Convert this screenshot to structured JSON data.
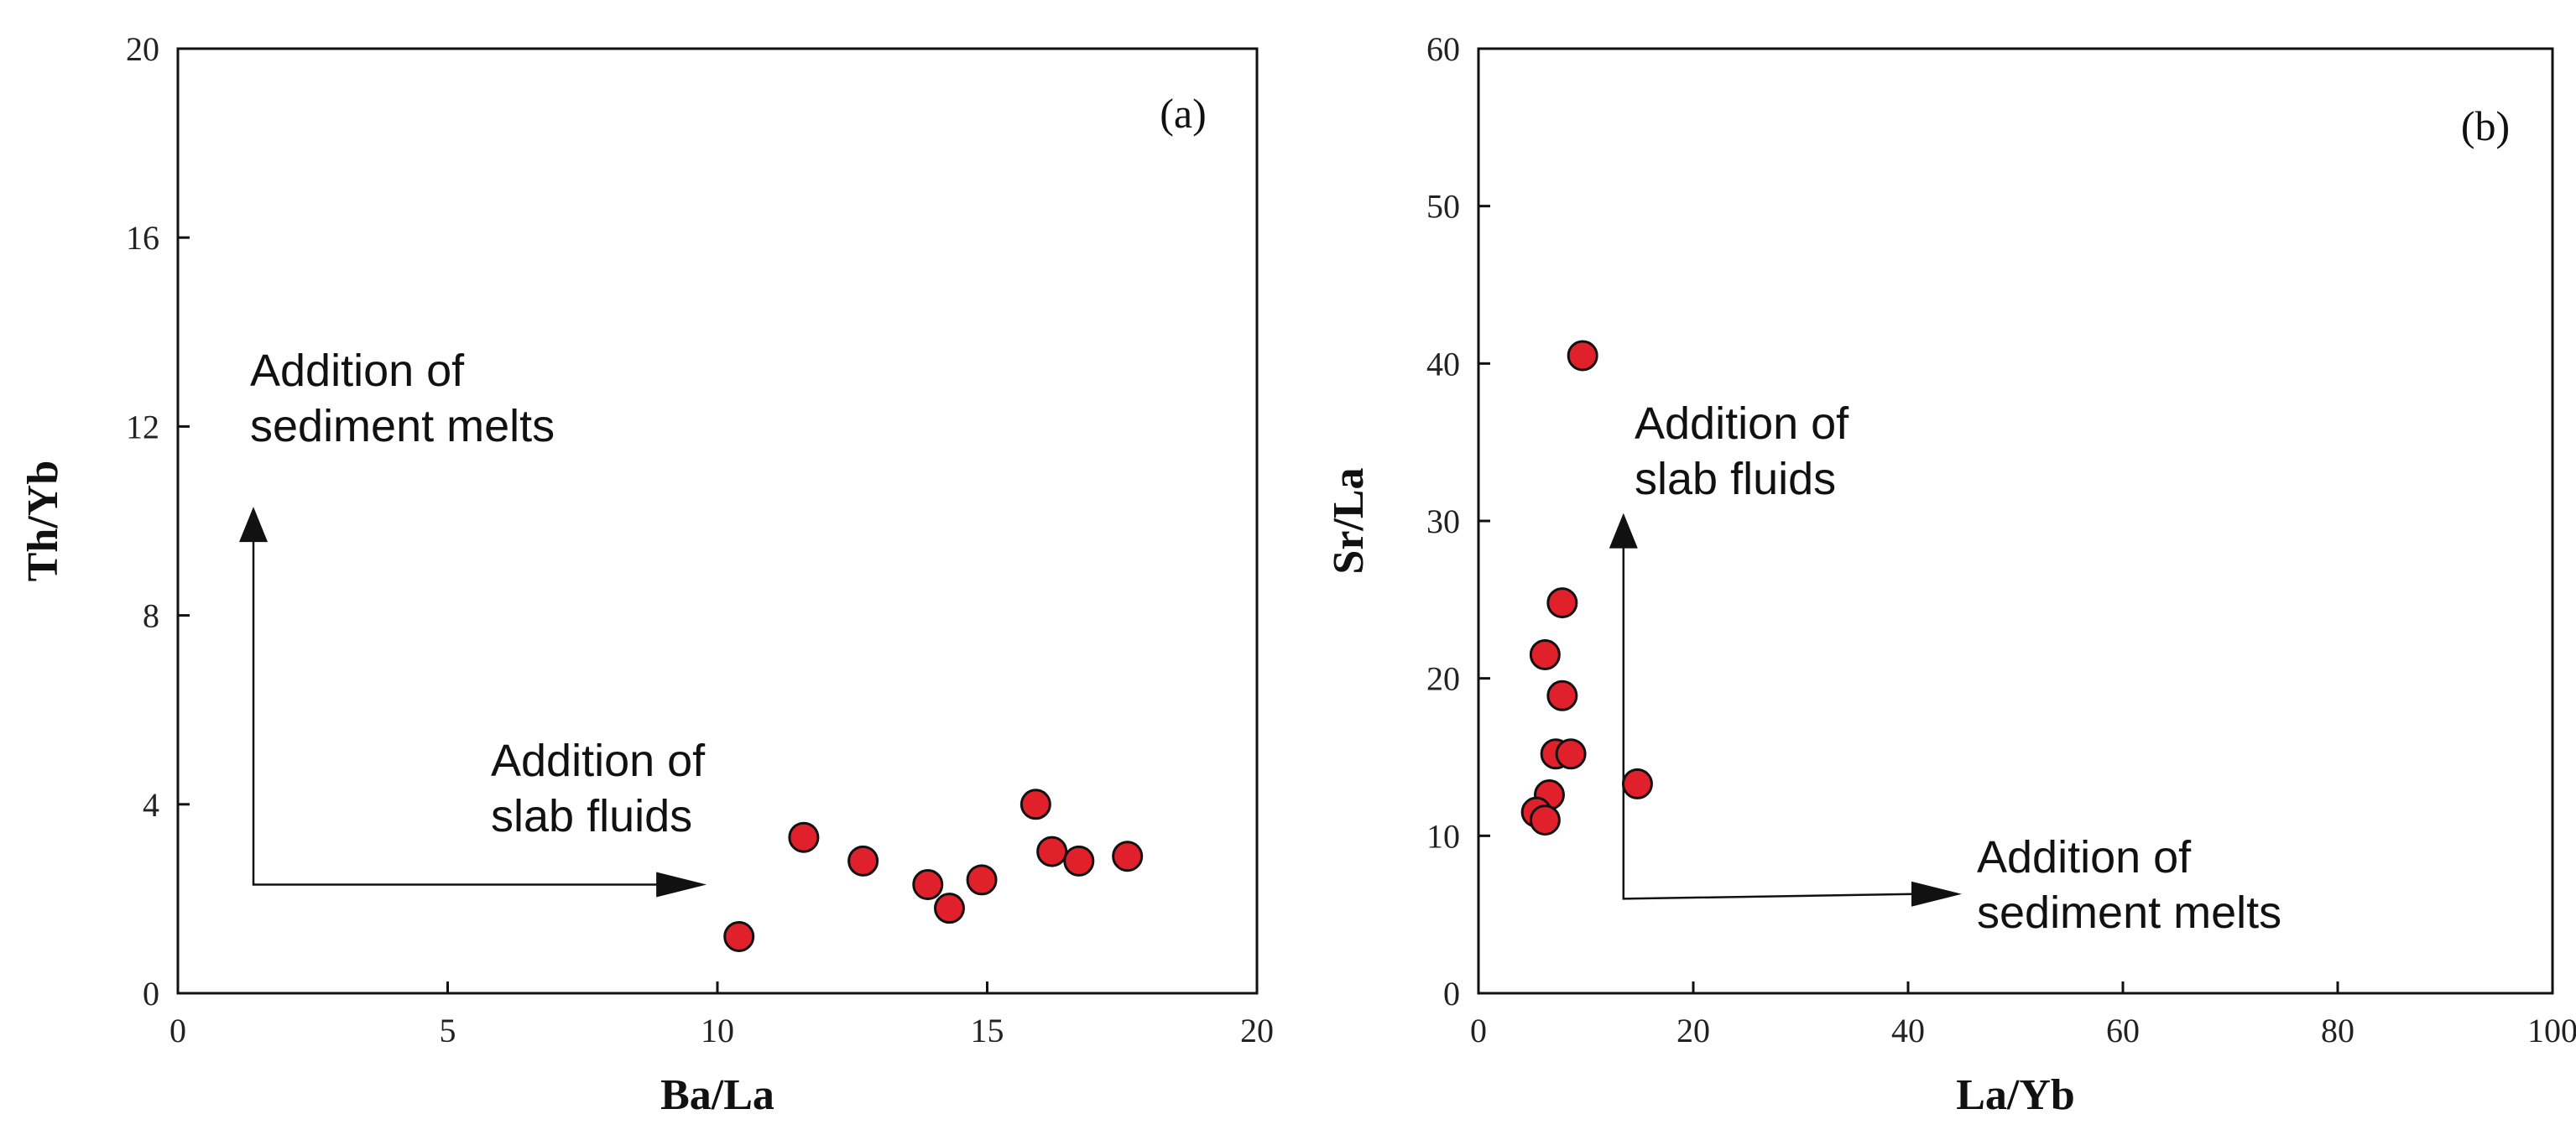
{
  "chart_data": [
    {
      "type": "scatter",
      "panel": "(a)",
      "xlabel": "Ba/La",
      "ylabel": "Th/Yb",
      "xlim": [
        0,
        20
      ],
      "ylim": [
        0,
        20
      ],
      "xticks": [
        0,
        5,
        10,
        15,
        20
      ],
      "yticks": [
        0,
        4,
        8,
        12,
        16,
        20
      ],
      "marker_color": "#e0202a",
      "points": [
        {
          "x": 10.4,
          "y": 1.2
        },
        {
          "x": 11.6,
          "y": 3.3
        },
        {
          "x": 12.7,
          "y": 2.8
        },
        {
          "x": 13.9,
          "y": 2.3
        },
        {
          "x": 14.3,
          "y": 1.8
        },
        {
          "x": 14.9,
          "y": 2.4
        },
        {
          "x": 15.9,
          "y": 4.0
        },
        {
          "x": 16.2,
          "y": 3.0
        },
        {
          "x": 16.7,
          "y": 2.8
        },
        {
          "x": 17.6,
          "y": 2.9
        }
      ],
      "annotations": [
        {
          "lines": [
            "Addition of",
            "sediment melts"
          ],
          "direction": "up"
        },
        {
          "lines": [
            "Addition of",
            "slab fluids"
          ],
          "direction": "right"
        }
      ],
      "arrows": {
        "corner": {
          "x": 1.4,
          "y": 2.3
        },
        "up_end": {
          "x": 1.4,
          "y": 10.3
        },
        "right_end": {
          "x": 9.8,
          "y": 2.3
        }
      }
    },
    {
      "type": "scatter",
      "panel": "(b)",
      "xlabel": "La/Yb",
      "ylabel": "Sr/La",
      "xlim": [
        0,
        100
      ],
      "ylim": [
        0,
        60
      ],
      "xticks": [
        0,
        20,
        40,
        60,
        80,
        100
      ],
      "yticks": [
        0,
        10,
        20,
        30,
        40,
        50,
        60
      ],
      "marker_color": "#e0202a",
      "points": [
        {
          "x": 9.7,
          "y": 40.5
        },
        {
          "x": 7.8,
          "y": 24.8
        },
        {
          "x": 6.2,
          "y": 21.5
        },
        {
          "x": 7.8,
          "y": 18.9
        },
        {
          "x": 7.2,
          "y": 15.2
        },
        {
          "x": 8.6,
          "y": 15.2
        },
        {
          "x": 14.8,
          "y": 13.3
        },
        {
          "x": 6.6,
          "y": 12.6
        },
        {
          "x": 5.4,
          "y": 11.5
        },
        {
          "x": 6.2,
          "y": 11.0
        }
      ],
      "annotations": [
        {
          "lines": [
            "Addition of",
            "slab fluids"
          ],
          "direction": "up"
        },
        {
          "lines": [
            "Addition of",
            "sediment melts"
          ],
          "direction": "right"
        }
      ],
      "arrows": {
        "corner": {
          "x": 13.5,
          "y": 6.0
        },
        "up_end": {
          "x": 13.5,
          "y": 30.5
        },
        "right_end": {
          "x": 45.0,
          "y": 6.3
        }
      }
    }
  ]
}
